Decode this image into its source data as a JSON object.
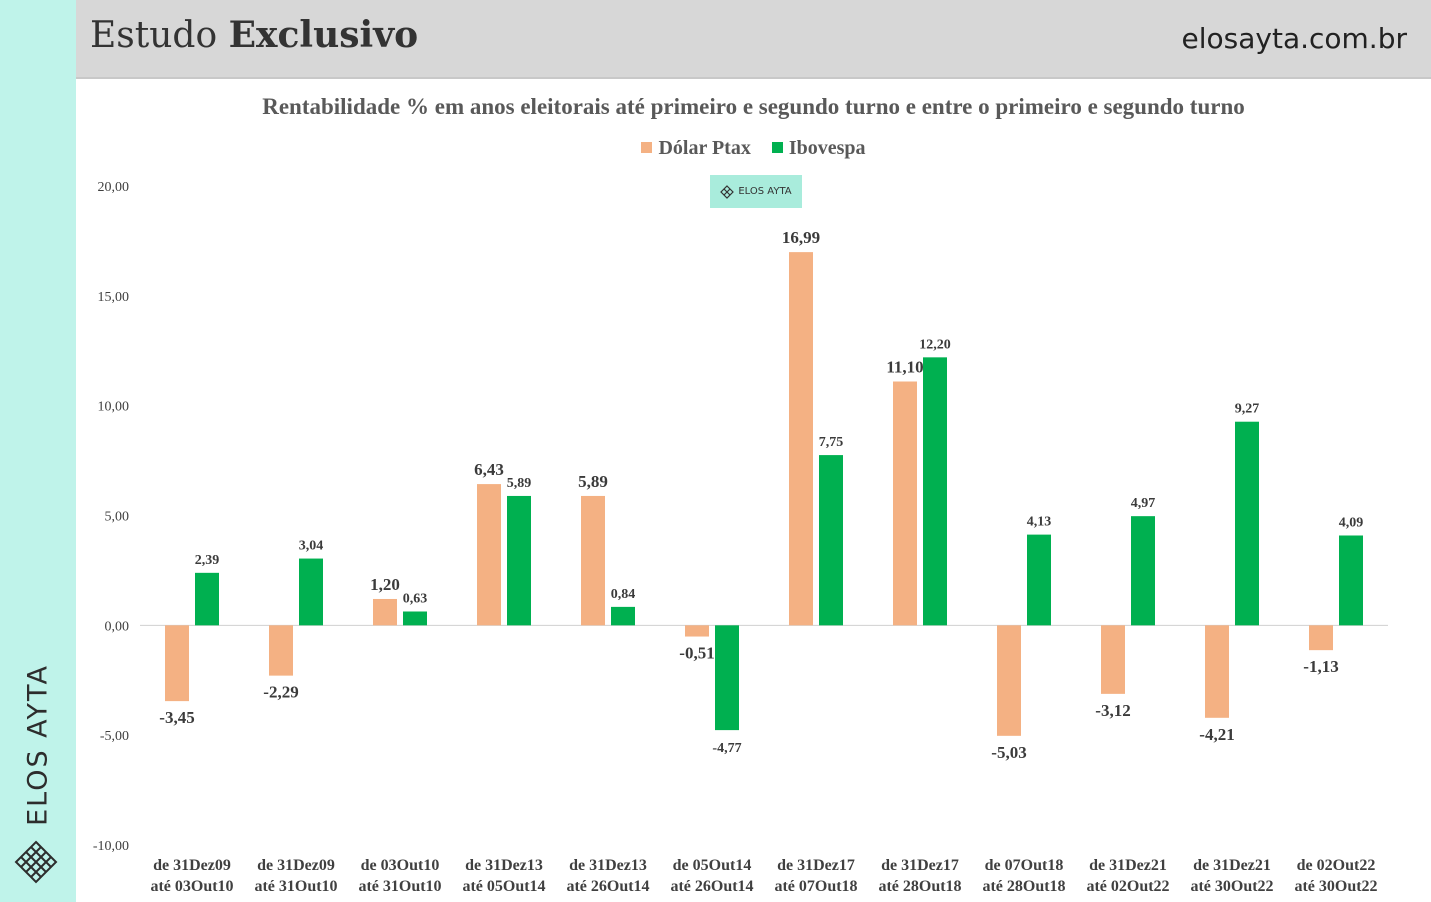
{
  "header": {
    "title_regular": "Estudo",
    "title_bold": "Exclusivo",
    "url": "elosayta.com.br"
  },
  "brand": {
    "vertical_text": "ELOS AYTA",
    "watermark_text": "ELOS AYTA",
    "logo_icon": "lattice-diamond-icon"
  },
  "colors": {
    "dolar": "#f4b183",
    "ibovespa": "#00b050",
    "strip": "#bff3ea",
    "header_bg": "#d7d7d7"
  },
  "chart_data": {
    "type": "bar",
    "title": "Rentabilidade % em anos eleitorais até primeiro e segundo turno e entre o primeiro e segundo turno",
    "legend_position": "top-center",
    "grid": false,
    "categories": [
      [
        "de 31Dez09",
        "até 03Out10"
      ],
      [
        "de 31Dez09",
        "até 31Out10"
      ],
      [
        "de 03Out10",
        "até 31Out10"
      ],
      [
        "de 31Dez13",
        "até 05Out14"
      ],
      [
        "de 31Dez13",
        "até 26Out14"
      ],
      [
        "de 05Out14",
        "até 26Out14"
      ],
      [
        "de 31Dez17",
        "até 07Out18"
      ],
      [
        "de 31Dez17",
        "até 28Out18"
      ],
      [
        "de 07Out18",
        "até 28Out18"
      ],
      [
        "de 31Dez21",
        "até 02Out22"
      ],
      [
        "de 31Dez21",
        "até 30Out22"
      ],
      [
        "de 02Out22",
        "até 30Out22"
      ]
    ],
    "series": [
      {
        "name": "Dólar Ptax",
        "values": [
          -3.45,
          -2.29,
          1.2,
          6.43,
          5.89,
          -0.51,
          16.99,
          11.1,
          -5.03,
          -3.12,
          -4.21,
          -1.13
        ],
        "labels": [
          "-3,45",
          "-2,29",
          "1,20",
          "6,43",
          "5,89",
          "-0,51",
          "16,99",
          "11,10",
          "-5,03",
          "-3,12",
          "-4,21",
          "-1,13"
        ]
      },
      {
        "name": "Ibovespa",
        "values": [
          2.39,
          3.04,
          0.63,
          5.89,
          0.84,
          -4.77,
          7.75,
          12.2,
          4.13,
          4.97,
          9.27,
          4.09
        ],
        "labels": [
          "2,39",
          "3,04",
          "0,63",
          "5,89",
          "0,84",
          "-4,77",
          "7,75",
          "12,20",
          "4,13",
          "4,97",
          "9,27",
          "4,09"
        ]
      }
    ],
    "ylim": [
      -10,
      20
    ],
    "yticks": [
      20,
      15,
      10,
      5,
      0,
      -5,
      -10
    ],
    "ytick_labels": [
      "20,00",
      "15,00",
      "10,00",
      "5,00",
      "0,00",
      "-5,00",
      "-10,00"
    ]
  }
}
